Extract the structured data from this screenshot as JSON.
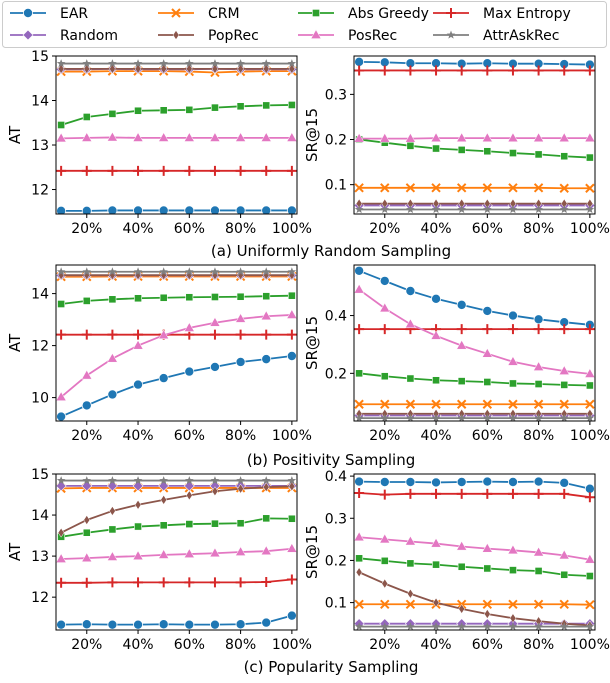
{
  "legend": {
    "ncol": 4,
    "placement": "top"
  },
  "series_styles": [
    {
      "name": "EAR",
      "color": "#1f77b4",
      "marker": "circle"
    },
    {
      "name": "CRM",
      "color": "#ff7f0e",
      "marker": "x"
    },
    {
      "name": "Abs Greedy",
      "color": "#2ca02c",
      "marker": "square"
    },
    {
      "name": "Max Entropy",
      "color": "#d62728",
      "marker": "plus"
    },
    {
      "name": "Random",
      "color": "#9467bd",
      "marker": "diamond"
    },
    {
      "name": "PopRec",
      "color": "#8c564b",
      "marker": "thin-diamond"
    },
    {
      "name": "PosRec",
      "color": "#e377c2",
      "marker": "triangle"
    },
    {
      "name": "AttrAskRec",
      "color": "#7f7f7f",
      "marker": "star"
    }
  ],
  "chart_data": [
    {
      "type": "line",
      "group": 0,
      "ylabel": "AT",
      "xlabel": "",
      "ylim": [
        11.45,
        15.0
      ],
      "yticks": [
        12,
        13,
        14,
        15
      ],
      "xlim": [
        8,
        102
      ],
      "x": [
        10,
        20,
        30,
        40,
        50,
        60,
        70,
        80,
        90,
        100
      ],
      "xticklabels": [
        "20%",
        "40%",
        "60%",
        "80%",
        "100%"
      ],
      "xticks": [
        20,
        40,
        60,
        80,
        100
      ],
      "series": [
        {
          "name": "EAR",
          "values": [
            11.52,
            11.52,
            11.53,
            11.53,
            11.53,
            11.53,
            11.53,
            11.53,
            11.53,
            11.53
          ]
        },
        {
          "name": "CRM",
          "values": [
            14.65,
            14.65,
            14.66,
            14.66,
            14.66,
            14.65,
            14.63,
            14.65,
            14.66,
            14.66
          ]
        },
        {
          "name": "Abs Greedy",
          "values": [
            13.45,
            13.63,
            13.7,
            13.77,
            13.78,
            13.79,
            13.84,
            13.87,
            13.89,
            13.9
          ]
        },
        {
          "name": "Max Entropy",
          "values": [
            12.42,
            12.42,
            12.42,
            12.42,
            12.42,
            12.42,
            12.42,
            12.42,
            12.42,
            12.42
          ]
        },
        {
          "name": "Random",
          "values": [
            14.7,
            14.7,
            14.71,
            14.7,
            14.7,
            14.7,
            14.71,
            14.7,
            14.7,
            14.7
          ]
        },
        {
          "name": "PopRec",
          "values": [
            14.71,
            14.71,
            14.71,
            14.71,
            14.71,
            14.71,
            14.71,
            14.71,
            14.71,
            14.71
          ]
        },
        {
          "name": "PosRec",
          "values": [
            13.15,
            13.16,
            13.17,
            13.16,
            13.16,
            13.16,
            13.16,
            13.16,
            13.16,
            13.16
          ]
        },
        {
          "name": "AttrAskRec",
          "values": [
            14.83,
            14.83,
            14.83,
            14.83,
            14.83,
            14.83,
            14.83,
            14.83,
            14.83,
            14.83
          ]
        }
      ]
    },
    {
      "type": "line",
      "group": 0,
      "ylabel": "SR@15",
      "xlabel": "",
      "ylim": [
        0.035,
        0.385
      ],
      "yticks": [
        0.1,
        0.2,
        0.3
      ],
      "yticklabels": [
        "0.1",
        "0.2",
        "0.3"
      ],
      "xlim": [
        8,
        102
      ],
      "x": [
        10,
        20,
        30,
        40,
        50,
        60,
        70,
        80,
        90,
        100
      ],
      "xticklabels": [
        "20%",
        "40%",
        "60%",
        "80%",
        "100%"
      ],
      "xticks": [
        20,
        40,
        60,
        80,
        100
      ],
      "series": [
        {
          "name": "EAR",
          "values": [
            0.372,
            0.371,
            0.369,
            0.369,
            0.368,
            0.369,
            0.368,
            0.368,
            0.367,
            0.366
          ]
        },
        {
          "name": "CRM",
          "values": [
            0.093,
            0.093,
            0.093,
            0.093,
            0.093,
            0.093,
            0.093,
            0.093,
            0.092,
            0.092
          ]
        },
        {
          "name": "Abs Greedy",
          "values": [
            0.2,
            0.193,
            0.186,
            0.18,
            0.177,
            0.174,
            0.17,
            0.167,
            0.163,
            0.16
          ]
        },
        {
          "name": "Max Entropy",
          "values": [
            0.353,
            0.353,
            0.353,
            0.353,
            0.353,
            0.353,
            0.353,
            0.353,
            0.353,
            0.353
          ]
        },
        {
          "name": "Random",
          "values": [
            0.054,
            0.054,
            0.054,
            0.054,
            0.054,
            0.054,
            0.054,
            0.054,
            0.054,
            0.054
          ]
        },
        {
          "name": "PopRec",
          "values": [
            0.058,
            0.058,
            0.058,
            0.058,
            0.058,
            0.058,
            0.058,
            0.058,
            0.058,
            0.058
          ]
        },
        {
          "name": "PosRec",
          "values": [
            0.202,
            0.202,
            0.202,
            0.203,
            0.203,
            0.203,
            0.203,
            0.203,
            0.203,
            0.203
          ]
        },
        {
          "name": "AttrAskRec",
          "values": [
            0.045,
            0.045,
            0.045,
            0.045,
            0.045,
            0.045,
            0.045,
            0.045,
            0.045,
            0.045
          ]
        }
      ]
    },
    {
      "type": "line",
      "group": 1,
      "ylabel": "AT",
      "xlabel": "",
      "ylim": [
        9.1,
        15.1
      ],
      "yticks": [
        10,
        12,
        14
      ],
      "xlim": [
        8,
        102
      ],
      "x": [
        10,
        20,
        30,
        40,
        50,
        60,
        70,
        80,
        90,
        100
      ],
      "xticklabels": [
        "20%",
        "40%",
        "60%",
        "80%",
        "100%"
      ],
      "xticks": [
        20,
        40,
        60,
        80,
        100
      ],
      "series": [
        {
          "name": "EAR",
          "values": [
            9.27,
            9.7,
            10.12,
            10.5,
            10.75,
            11.0,
            11.18,
            11.37,
            11.48,
            11.6
          ]
        },
        {
          "name": "CRM",
          "values": [
            14.65,
            14.65,
            14.66,
            14.66,
            14.66,
            14.66,
            14.66,
            14.66,
            14.66,
            14.66
          ]
        },
        {
          "name": "Abs Greedy",
          "values": [
            13.6,
            13.72,
            13.78,
            13.82,
            13.84,
            13.86,
            13.87,
            13.88,
            13.9,
            13.92
          ]
        },
        {
          "name": "Max Entropy",
          "values": [
            12.42,
            12.42,
            12.42,
            12.42,
            12.42,
            12.42,
            12.42,
            12.42,
            12.42,
            12.42
          ]
        },
        {
          "name": "Random",
          "values": [
            14.7,
            14.7,
            14.7,
            14.7,
            14.7,
            14.7,
            14.7,
            14.7,
            14.7,
            14.7
          ]
        },
        {
          "name": "PopRec",
          "values": [
            14.71,
            14.71,
            14.71,
            14.71,
            14.71,
            14.71,
            14.71,
            14.71,
            14.71,
            14.71
          ]
        },
        {
          "name": "PosRec",
          "values": [
            10.02,
            10.85,
            11.5,
            12.0,
            12.4,
            12.68,
            12.88,
            13.03,
            13.13,
            13.18
          ]
        },
        {
          "name": "AttrAskRec",
          "values": [
            14.84,
            14.84,
            14.84,
            14.84,
            14.84,
            14.84,
            14.84,
            14.84,
            14.84,
            14.84
          ]
        }
      ]
    },
    {
      "type": "line",
      "group": 1,
      "ylabel": "SR@15",
      "xlabel": "",
      "ylim": [
        0.035,
        0.575
      ],
      "yticks": [
        0.2,
        0.4
      ],
      "yticklabels": [
        "0.2",
        "0.4"
      ],
      "xlim": [
        8,
        102
      ],
      "x": [
        10,
        20,
        30,
        40,
        50,
        60,
        70,
        80,
        90,
        100
      ],
      "xticklabels": [
        "20%",
        "40%",
        "60%",
        "80%",
        "100%"
      ],
      "xticks": [
        20,
        40,
        60,
        80,
        100
      ],
      "series": [
        {
          "name": "EAR",
          "values": [
            0.555,
            0.52,
            0.485,
            0.458,
            0.437,
            0.416,
            0.4,
            0.387,
            0.377,
            0.368
          ]
        },
        {
          "name": "CRM",
          "values": [
            0.093,
            0.093,
            0.093,
            0.093,
            0.093,
            0.093,
            0.093,
            0.093,
            0.093,
            0.093
          ]
        },
        {
          "name": "Abs Greedy",
          "values": [
            0.2,
            0.19,
            0.182,
            0.176,
            0.173,
            0.17,
            0.165,
            0.163,
            0.16,
            0.158
          ]
        },
        {
          "name": "Max Entropy",
          "values": [
            0.353,
            0.353,
            0.353,
            0.353,
            0.353,
            0.353,
            0.353,
            0.353,
            0.353,
            0.353
          ]
        },
        {
          "name": "Random",
          "values": [
            0.054,
            0.054,
            0.054,
            0.054,
            0.054,
            0.054,
            0.054,
            0.054,
            0.054,
            0.054
          ]
        },
        {
          "name": "PopRec",
          "values": [
            0.06,
            0.06,
            0.06,
            0.06,
            0.06,
            0.06,
            0.06,
            0.06,
            0.06,
            0.06
          ]
        },
        {
          "name": "PosRec",
          "values": [
            0.49,
            0.425,
            0.37,
            0.33,
            0.296,
            0.268,
            0.24,
            0.222,
            0.208,
            0.198
          ]
        },
        {
          "name": "AttrAskRec",
          "values": [
            0.045,
            0.045,
            0.045,
            0.045,
            0.045,
            0.045,
            0.045,
            0.045,
            0.045,
            0.045
          ]
        }
      ]
    },
    {
      "type": "line",
      "group": 2,
      "ylabel": "AT",
      "xlabel": "",
      "ylim": [
        11.2,
        15.0
      ],
      "yticks": [
        12,
        13,
        14,
        15
      ],
      "xlim": [
        8,
        102
      ],
      "x": [
        10,
        20,
        30,
        40,
        50,
        60,
        70,
        80,
        90,
        100
      ],
      "xticklabels": [
        "20%",
        "40%",
        "60%",
        "80%",
        "100%"
      ],
      "xticks": [
        20,
        40,
        60,
        80,
        100
      ],
      "series": [
        {
          "name": "EAR",
          "values": [
            11.33,
            11.34,
            11.33,
            11.33,
            11.34,
            11.33,
            11.33,
            11.34,
            11.38,
            11.55
          ]
        },
        {
          "name": "CRM",
          "values": [
            14.65,
            14.66,
            14.66,
            14.66,
            14.66,
            14.66,
            14.66,
            14.66,
            14.66,
            14.66
          ]
        },
        {
          "name": "Abs Greedy",
          "values": [
            13.47,
            13.57,
            13.65,
            13.72,
            13.75,
            13.78,
            13.79,
            13.8,
            13.92,
            13.91
          ]
        },
        {
          "name": "Max Entropy",
          "values": [
            12.35,
            12.35,
            12.36,
            12.36,
            12.36,
            12.36,
            12.36,
            12.36,
            12.37,
            12.43
          ]
        },
        {
          "name": "Random",
          "values": [
            14.71,
            14.71,
            14.71,
            14.71,
            14.71,
            14.71,
            14.71,
            14.71,
            14.71,
            14.71
          ]
        },
        {
          "name": "PopRec",
          "values": [
            13.57,
            13.88,
            14.1,
            14.25,
            14.37,
            14.48,
            14.58,
            14.64,
            14.68,
            14.7
          ]
        },
        {
          "name": "PosRec",
          "values": [
            12.93,
            12.95,
            12.98,
            13.0,
            13.03,
            13.05,
            13.07,
            13.1,
            13.12,
            13.18
          ]
        },
        {
          "name": "AttrAskRec",
          "values": [
            14.84,
            14.84,
            14.84,
            14.84,
            14.84,
            14.84,
            14.84,
            14.84,
            14.84,
            14.84
          ]
        }
      ]
    },
    {
      "type": "line",
      "group": 2,
      "ylabel": "SR@15",
      "xlabel": "",
      "ylim": [
        0.035,
        0.405
      ],
      "yticks": [
        0.1,
        0.2,
        0.3,
        0.4
      ],
      "yticklabels": [
        "0.1",
        "0.2",
        "0.3",
        "0.4"
      ],
      "xlim": [
        8,
        102
      ],
      "x": [
        10,
        20,
        30,
        40,
        50,
        60,
        70,
        80,
        90,
        100
      ],
      "xticklabels": [
        "20%",
        "40%",
        "60%",
        "80%",
        "100%"
      ],
      "xticks": [
        20,
        40,
        60,
        80,
        100
      ],
      "series": [
        {
          "name": "EAR",
          "values": [
            0.387,
            0.386,
            0.386,
            0.385,
            0.386,
            0.387,
            0.386,
            0.387,
            0.384,
            0.37
          ]
        },
        {
          "name": "CRM",
          "values": [
            0.096,
            0.096,
            0.096,
            0.096,
            0.096,
            0.096,
            0.096,
            0.096,
            0.096,
            0.095
          ]
        },
        {
          "name": "Abs Greedy",
          "values": [
            0.205,
            0.199,
            0.193,
            0.19,
            0.185,
            0.181,
            0.177,
            0.175,
            0.166,
            0.163
          ]
        },
        {
          "name": "Max Entropy",
          "values": [
            0.36,
            0.356,
            0.358,
            0.358,
            0.358,
            0.358,
            0.358,
            0.358,
            0.358,
            0.35
          ]
        },
        {
          "name": "Random",
          "values": [
            0.05,
            0.05,
            0.05,
            0.05,
            0.05,
            0.05,
            0.05,
            0.05,
            0.05,
            0.05
          ]
        },
        {
          "name": "PopRec",
          "values": [
            0.172,
            0.145,
            0.121,
            0.1,
            0.085,
            0.073,
            0.063,
            0.056,
            0.05,
            0.046
          ]
        },
        {
          "name": "PosRec",
          "values": [
            0.255,
            0.25,
            0.245,
            0.24,
            0.233,
            0.228,
            0.224,
            0.219,
            0.212,
            0.202
          ]
        },
        {
          "name": "AttrAskRec",
          "values": [
            0.043,
            0.043,
            0.043,
            0.043,
            0.043,
            0.043,
            0.043,
            0.043,
            0.043,
            0.043
          ]
        }
      ]
    }
  ],
  "captions": [
    "(a) Uniformly Random Sampling",
    "(b) Positivity Sampling",
    "(c) Popularity Sampling"
  ]
}
